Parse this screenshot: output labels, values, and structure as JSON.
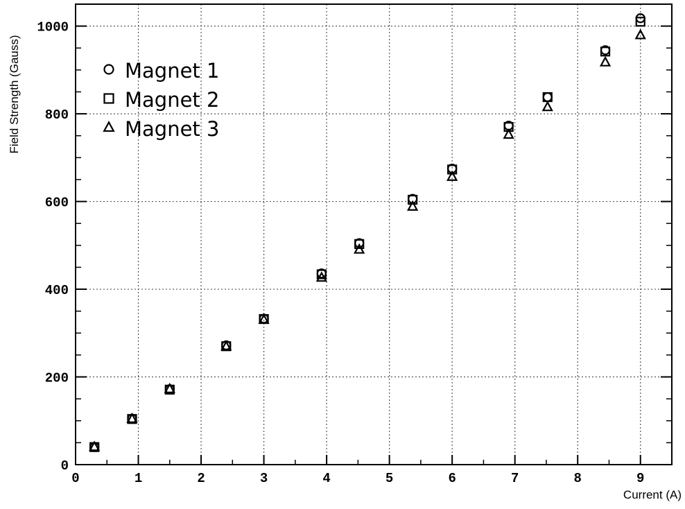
{
  "chart_data": {
    "type": "scatter",
    "title": "",
    "xlabel": "Current (A)",
    "ylabel": "Field Strength (Gauss)",
    "xlim": [
      0,
      9.5
    ],
    "ylim": [
      0,
      1050
    ],
    "x_ticks": [
      0,
      1,
      2,
      3,
      4,
      5,
      6,
      7,
      8,
      9
    ],
    "y_ticks": [
      0,
      200,
      400,
      600,
      800,
      1000
    ],
    "grid": true,
    "legend_position": "top-left",
    "series": [
      {
        "name": "Magnet 1",
        "marker": "circle",
        "x": [
          0.3,
          0.9,
          1.5,
          2.4,
          3.0,
          3.92,
          4.52,
          5.37,
          6.0,
          6.9,
          7.52,
          8.44,
          9.0
        ],
        "y": [
          40,
          105,
          172,
          272,
          333,
          436,
          505,
          606,
          675,
          773,
          838,
          945,
          1018
        ]
      },
      {
        "name": "Magnet 2",
        "marker": "square",
        "x": [
          0.3,
          0.9,
          1.5,
          2.4,
          3.0,
          3.92,
          4.52,
          5.37,
          6.0,
          6.9,
          7.52,
          8.44,
          9.0
        ],
        "y": [
          40,
          104,
          171,
          270,
          332,
          434,
          503,
          604,
          673,
          770,
          838,
          942,
          1010
        ]
      },
      {
        "name": "Magnet 3",
        "marker": "triangle",
        "x": [
          0.3,
          0.9,
          1.5,
          2.4,
          3.0,
          3.92,
          4.52,
          5.37,
          6.0,
          6.9,
          7.52,
          8.44,
          9.0
        ],
        "y": [
          40,
          104,
          172,
          269,
          330,
          426,
          490,
          588,
          656,
          752,
          815,
          917,
          979
        ]
      }
    ]
  }
}
